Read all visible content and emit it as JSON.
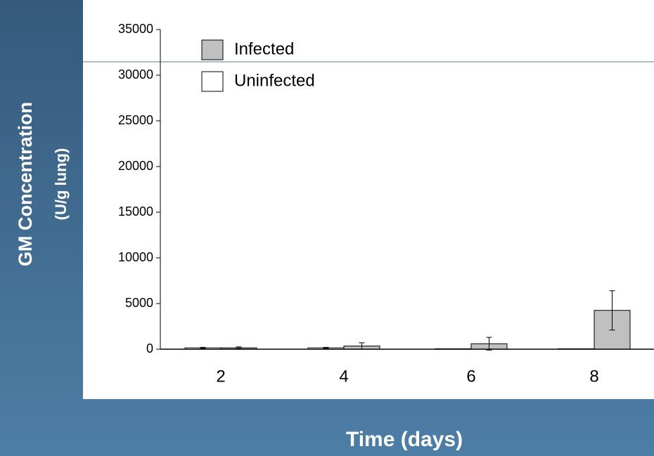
{
  "chart_data": {
    "type": "bar",
    "y_label_line1": "GM Concentration",
    "y_label_line2": "(U/g lung)",
    "x_label": "Time (days)",
    "categories": [
      "2",
      "4",
      "6",
      "8"
    ],
    "series": [
      {
        "name": "Uninfected",
        "color": "#ffffff",
        "values": [
          150,
          150,
          50,
          50
        ],
        "errors": [
          50,
          50,
          0,
          0
        ]
      },
      {
        "name": "Infected",
        "color": "#c0c0c0",
        "values": [
          150,
          350,
          600,
          4250
        ],
        "errors": [
          100,
          350,
          700,
          2150
        ]
      }
    ],
    "legend_order": [
      1,
      0
    ],
    "ylim": [
      0,
      35000
    ],
    "yticks": [
      0,
      5000,
      10000,
      15000,
      20000,
      25000,
      30000,
      35000
    ],
    "legend": "upper left"
  }
}
